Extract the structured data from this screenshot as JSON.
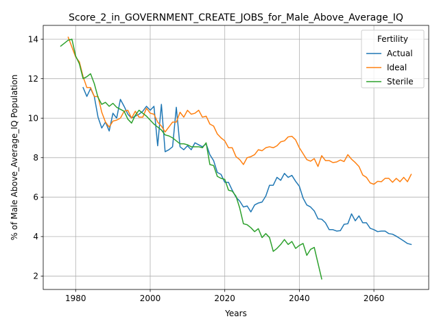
{
  "chart_data": {
    "type": "line",
    "title": "Score_2_in_GOVERNMENT_CREATE_JOBS_for_Male_Above_Average_IQ",
    "xlabel": "Years",
    "ylabel": "% of Male Above_Average_IQ Population",
    "xlim": [
      1971.3,
      2074.7
    ],
    "ylim": [
      1.32,
      14.7
    ],
    "xticks": [
      1980,
      2000,
      2020,
      2040,
      2060
    ],
    "yticks": [
      2,
      4,
      6,
      8,
      10,
      12,
      14
    ],
    "grid": true,
    "legend": {
      "title": "Fertility",
      "placement": "top-right"
    },
    "series": [
      {
        "name": "Actual",
        "color": "#1f77b4",
        "x": [
          1982,
          1983,
          1984,
          1985,
          1986,
          1987,
          1988,
          1989,
          1990,
          1991,
          1992,
          1993,
          1994,
          1995,
          1996,
          1997,
          1998,
          1999,
          2000,
          2001,
          2002,
          2003,
          2004,
          2005,
          2006,
          2007,
          2008,
          2009,
          2010,
          2011,
          2012,
          2013,
          2014,
          2015,
          2016,
          2017,
          2018,
          2019,
          2020,
          2021,
          2022,
          2023,
          2024,
          2025,
          2026,
          2027,
          2028,
          2029,
          2030,
          2031,
          2032,
          2033,
          2034,
          2035,
          2036,
          2037,
          2038,
          2039,
          2040,
          2041,
          2042,
          2043,
          2044,
          2045,
          2046,
          2047,
          2048,
          2049,
          2050,
          2051,
          2052,
          2053,
          2054,
          2055,
          2056,
          2057,
          2058,
          2059,
          2060,
          2061,
          2062,
          2063,
          2064,
          2065,
          2066,
          2067,
          2068,
          2069,
          2070
        ],
        "values": [
          11.55,
          11.1,
          11.5,
          11.1,
          10.05,
          9.5,
          9.8,
          9.35,
          10.25,
          10.0,
          10.95,
          10.6,
          10.2,
          10.0,
          10.1,
          10.2,
          10.35,
          10.6,
          10.4,
          10.6,
          8.6,
          10.7,
          8.3,
          8.4,
          8.55,
          10.55,
          8.55,
          8.4,
          8.6,
          8.4,
          8.75,
          8.65,
          8.55,
          8.7,
          8.15,
          7.85,
          7.25,
          7.15,
          6.75,
          6.75,
          6.35,
          6.0,
          5.8,
          5.5,
          5.55,
          5.25,
          5.6,
          5.7,
          5.75,
          6.05,
          6.6,
          6.6,
          7.0,
          6.85,
          7.2,
          7.0,
          7.1,
          6.8,
          6.55,
          5.95,
          5.6,
          5.5,
          5.3,
          4.9,
          4.88,
          4.7,
          4.35,
          4.35,
          4.28,
          4.3,
          4.62,
          4.65,
          5.15,
          4.8,
          5.05,
          4.7,
          4.7,
          4.42,
          4.35,
          4.25,
          4.28,
          4.28,
          4.15,
          4.12,
          4.02,
          3.9,
          3.78,
          3.65,
          3.6
        ]
      },
      {
        "name": "Ideal",
        "color": "#ff7f0e",
        "x": [
          1978,
          1979,
          1980,
          1981,
          1982,
          1983,
          1984,
          1985,
          1986,
          1987,
          1988,
          1989,
          1990,
          1991,
          1992,
          1993,
          1994,
          1995,
          1996,
          1997,
          1998,
          1999,
          2000,
          2001,
          2002,
          2003,
          2004,
          2005,
          2006,
          2007,
          2008,
          2009,
          2010,
          2011,
          2012,
          2013,
          2014,
          2015,
          2016,
          2017,
          2018,
          2019,
          2020,
          2021,
          2022,
          2023,
          2024,
          2025,
          2026,
          2027,
          2028,
          2029,
          2030,
          2031,
          2032,
          2033,
          2034,
          2035,
          2036,
          2037,
          2038,
          2039,
          2040,
          2041,
          2042,
          2043,
          2044,
          2045,
          2046,
          2047,
          2048,
          2049,
          2050,
          2051,
          2052,
          2053,
          2054,
          2055,
          2056,
          2057,
          2058,
          2059,
          2060,
          2061,
          2062,
          2063,
          2064,
          2065,
          2066,
          2067,
          2068,
          2069,
          2070
        ],
        "values": [
          14.1,
          13.6,
          13.1,
          12.85,
          12.1,
          11.55,
          11.55,
          11.1,
          11.1,
          10.3,
          9.8,
          9.55,
          9.85,
          9.9,
          10.0,
          10.35,
          10.4,
          10.0,
          10.35,
          10.05,
          10.05,
          10.5,
          10.25,
          10.2,
          9.8,
          9.6,
          9.3,
          9.55,
          9.8,
          9.8,
          10.3,
          10.05,
          10.4,
          10.2,
          10.25,
          10.4,
          10.05,
          10.1,
          9.7,
          9.6,
          9.2,
          9.0,
          8.85,
          8.5,
          8.5,
          8.05,
          7.9,
          7.65,
          8.0,
          8.05,
          8.15,
          8.4,
          8.35,
          8.5,
          8.55,
          8.5,
          8.6,
          8.8,
          8.85,
          9.05,
          9.08,
          8.9,
          8.5,
          8.2,
          7.9,
          7.82,
          7.95,
          7.55,
          8.1,
          7.85,
          7.85,
          7.75,
          7.78,
          7.88,
          7.8,
          8.15,
          7.92,
          7.75,
          7.55,
          7.12,
          7.0,
          6.72,
          6.65,
          6.8,
          6.78,
          6.95,
          6.95,
          6.75,
          6.95,
          6.78,
          7.0,
          6.78,
          7.15
        ]
      },
      {
        "name": "Sterile",
        "color": "#2ca02c",
        "x": [
          1976,
          1977,
          1978,
          1979,
          1980,
          1981,
          1982,
          1983,
          1984,
          1985,
          1986,
          1987,
          1988,
          1989,
          1990,
          1991,
          1992,
          1993,
          1994,
          1995,
          1996,
          1997,
          1998,
          1999,
          2000,
          2001,
          2002,
          2003,
          2004,
          2005,
          2006,
          2007,
          2008,
          2009,
          2010,
          2011,
          2012,
          2013,
          2014,
          2015,
          2016,
          2017,
          2018,
          2019,
          2020,
          2021,
          2022,
          2023,
          2024,
          2025,
          2026,
          2027,
          2028,
          2029,
          2030,
          2031,
          2032,
          2033,
          2034,
          2035,
          2036,
          2037,
          2038,
          2039,
          2040,
          2041,
          2042,
          2043,
          2044,
          2045,
          2046
        ],
        "values": [
          13.65,
          13.8,
          13.95,
          14.0,
          13.15,
          12.75,
          12.0,
          12.1,
          12.25,
          11.75,
          11.05,
          10.7,
          10.8,
          10.6,
          10.75,
          10.55,
          10.45,
          10.35,
          9.95,
          9.75,
          10.15,
          10.4,
          10.25,
          10.1,
          9.9,
          9.7,
          9.55,
          9.4,
          9.15,
          9.1,
          9.0,
          8.85,
          8.7,
          8.7,
          8.65,
          8.55,
          8.55,
          8.55,
          8.5,
          8.75,
          7.65,
          7.6,
          7.05,
          6.95,
          6.9,
          6.35,
          6.3,
          6.05,
          5.45,
          4.65,
          4.6,
          4.45,
          4.25,
          4.4,
          3.95,
          4.15,
          3.95,
          3.25,
          3.4,
          3.6,
          3.85,
          3.6,
          3.75,
          3.4,
          3.55,
          3.65,
          3.05,
          3.35,
          3.45,
          2.65,
          1.85
        ]
      }
    ]
  }
}
